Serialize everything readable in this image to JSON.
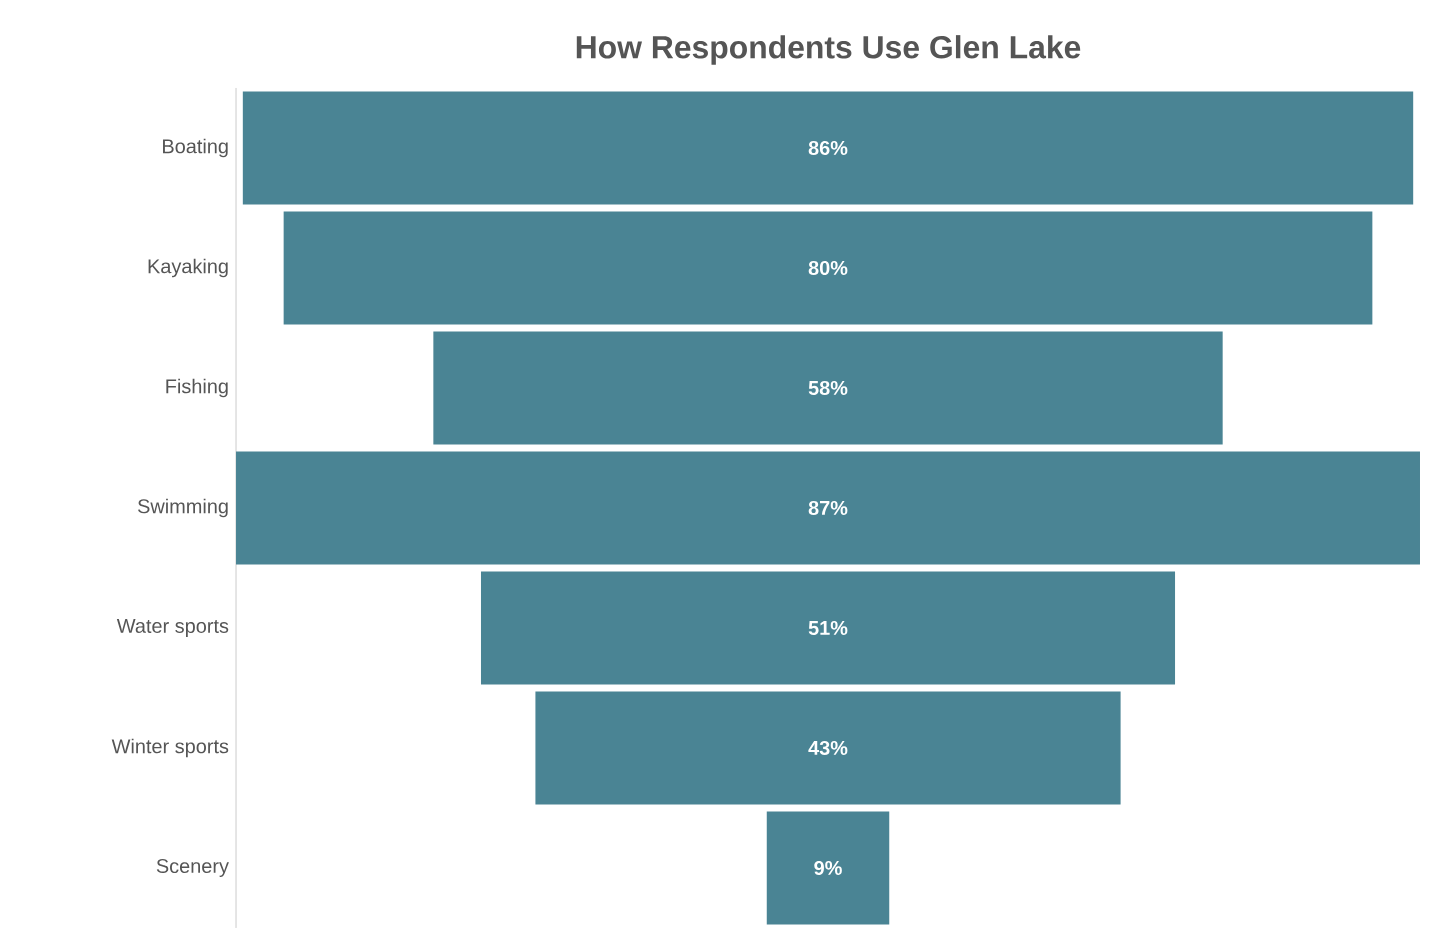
{
  "chart_data": {
    "type": "other",
    "title": "How Respondents Use Glen Lake",
    "categories": [
      "Boating",
      "Kayaking",
      "Fishing",
      "Swimming",
      "Water sports",
      "Winter sports",
      "Scenery"
    ],
    "values": [
      86,
      80,
      58,
      87,
      51,
      43,
      9
    ],
    "value_labels": [
      "86%",
      "80%",
      "58%",
      "87%",
      "51%",
      "43%",
      "9%"
    ],
    "color": "#4a8494"
  }
}
